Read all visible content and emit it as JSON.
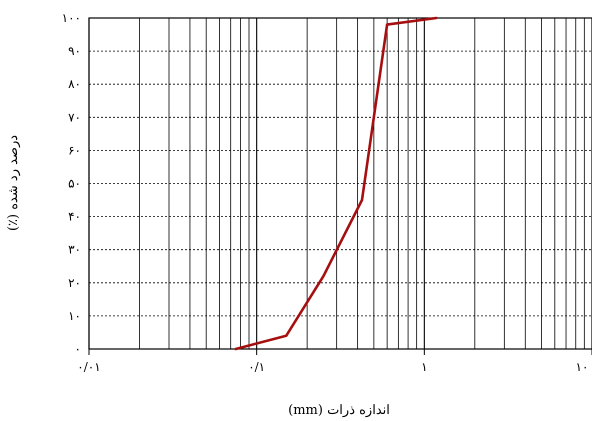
{
  "chart_data": {
    "type": "line",
    "x_scale": "log",
    "xlim": [
      0.01,
      10
    ],
    "ylim": [
      0,
      100
    ],
    "xlabel": "اندازه ذرات (mm)",
    "ylabel": "درصد رد شده (٪)",
    "x_ticks": [
      {
        "value": 0.01,
        "label": "۰/۰۱"
      },
      {
        "value": 0.1,
        "label": "۰/۱"
      },
      {
        "value": 1,
        "label": "۱"
      },
      {
        "value": 10,
        "label": "۱۰"
      }
    ],
    "y_ticks": [
      {
        "value": 0,
        "label": "۰"
      },
      {
        "value": 10,
        "label": "۱۰"
      },
      {
        "value": 20,
        "label": "۲۰"
      },
      {
        "value": 30,
        "label": "۳۰"
      },
      {
        "value": 40,
        "label": "۴۰"
      },
      {
        "value": 50,
        "label": "۵۰"
      },
      {
        "value": 60,
        "label": "۶۰"
      },
      {
        "value": 70,
        "label": "۷۰"
      },
      {
        "value": 80,
        "label": "۸۰"
      },
      {
        "value": 90,
        "label": "۹۰"
      },
      {
        "value": 100,
        "label": "۱۰۰"
      }
    ],
    "grid": true,
    "series": [
      {
        "color": "#a50f0f",
        "x": [
          0.075,
          0.15,
          0.25,
          0.425,
          0.6,
          1.18
        ],
        "y": [
          0,
          4,
          22,
          45,
          98,
          100
        ]
      }
    ]
  }
}
